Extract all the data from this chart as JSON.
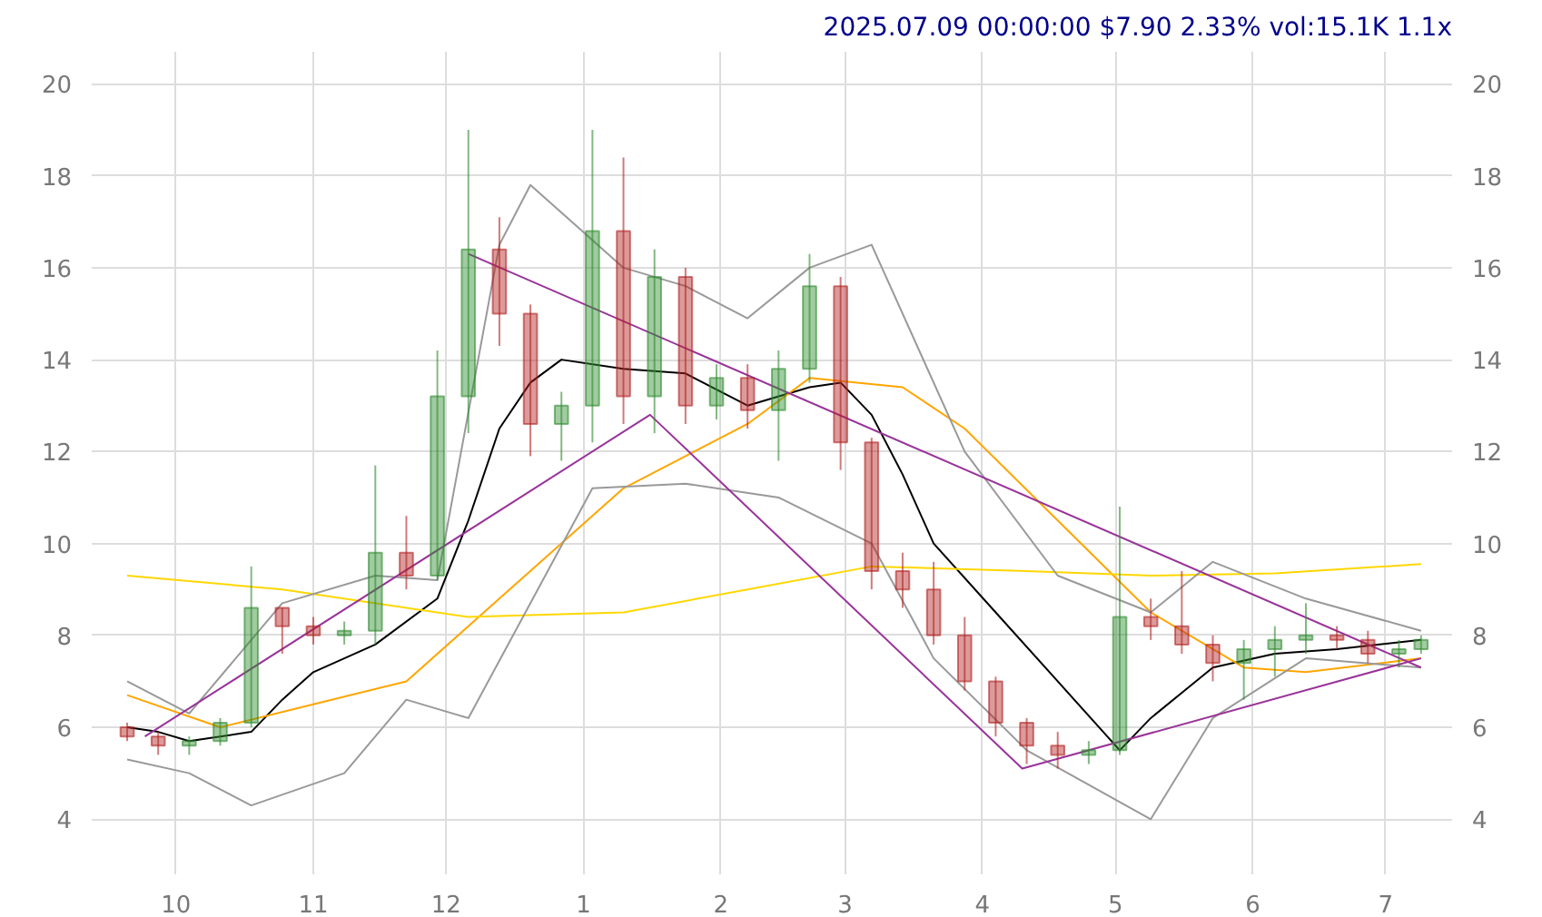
{
  "chart_data": {
    "type": "candlestick",
    "title": "2025.07.09 00:00:00 $7.90 2.33% vol:15.1K 1.1x",
    "x": [
      "2024-09-20",
      "2024-09-27",
      "2024-10-04",
      "2024-10-11",
      "2024-10-18",
      "2024-10-25",
      "2024-11-01",
      "2024-11-08",
      "2024-11-15",
      "2024-11-22",
      "2024-11-29",
      "2024-12-06",
      "2024-12-13",
      "2024-12-20",
      "2024-12-27",
      "2025-01-03",
      "2025-01-10",
      "2025-01-17",
      "2025-01-24",
      "2025-01-31",
      "2025-02-07",
      "2025-02-14",
      "2025-02-21",
      "2025-02-28",
      "2025-03-07",
      "2025-03-14",
      "2025-03-21",
      "2025-03-28",
      "2025-04-04",
      "2025-04-11",
      "2025-04-18",
      "2025-04-25",
      "2025-05-02",
      "2025-05-09",
      "2025-05-16",
      "2025-05-23",
      "2025-05-30",
      "2025-06-06",
      "2025-06-13",
      "2025-06-20",
      "2025-06-27",
      "2025-07-04",
      "2025-07-09"
    ],
    "ohlc": [
      [
        6.0,
        6.1,
        5.7,
        5.8
      ],
      [
        5.8,
        5.9,
        5.4,
        5.6
      ],
      [
        5.6,
        5.8,
        5.4,
        5.7
      ],
      [
        5.7,
        6.2,
        5.6,
        6.1
      ],
      [
        6.1,
        9.5,
        6.0,
        8.6
      ],
      [
        8.6,
        8.6,
        7.6,
        8.2
      ],
      [
        8.2,
        8.4,
        7.8,
        8.0
      ],
      [
        8.0,
        8.3,
        7.8,
        8.1
      ],
      [
        8.1,
        11.7,
        7.8,
        9.8
      ],
      [
        9.8,
        10.6,
        9.0,
        9.3
      ],
      [
        9.3,
        14.2,
        9.2,
        13.2
      ],
      [
        13.2,
        19.0,
        12.4,
        16.4
      ],
      [
        16.4,
        17.1,
        14.3,
        15.0
      ],
      [
        15.0,
        15.2,
        11.9,
        12.6
      ],
      [
        12.6,
        13.3,
        11.8,
        13.0
      ],
      [
        13.0,
        19.0,
        12.2,
        16.8
      ],
      [
        16.8,
        18.4,
        12.6,
        13.2
      ],
      [
        13.2,
        16.4,
        12.4,
        15.8
      ],
      [
        15.8,
        16.0,
        12.6,
        13.0
      ],
      [
        13.0,
        13.9,
        12.7,
        13.6
      ],
      [
        13.6,
        13.9,
        12.5,
        12.9
      ],
      [
        12.9,
        14.2,
        11.8,
        13.8
      ],
      [
        13.8,
        16.3,
        13.5,
        15.6
      ],
      [
        15.6,
        15.8,
        11.6,
        12.2
      ],
      [
        12.2,
        12.3,
        9.0,
        9.4
      ],
      [
        9.4,
        9.8,
        8.6,
        9.0
      ],
      [
        9.0,
        9.6,
        7.8,
        8.0
      ],
      [
        8.0,
        8.4,
        6.8,
        7.0
      ],
      [
        7.0,
        7.1,
        5.8,
        6.1
      ],
      [
        6.1,
        6.2,
        5.2,
        5.6
      ],
      [
        5.6,
        5.9,
        5.1,
        5.4
      ],
      [
        5.4,
        5.7,
        5.2,
        5.5
      ],
      [
        5.5,
        10.8,
        5.4,
        8.4
      ],
      [
        8.4,
        8.8,
        7.9,
        8.2
      ],
      [
        8.2,
        9.4,
        7.6,
        7.8
      ],
      [
        7.8,
        8.0,
        7.0,
        7.4
      ],
      [
        7.4,
        7.9,
        6.6,
        7.7
      ],
      [
        7.7,
        8.2,
        7.1,
        7.9
      ],
      [
        7.9,
        8.7,
        7.6,
        8.0
      ],
      [
        8.0,
        8.2,
        7.7,
        7.9
      ],
      [
        7.9,
        8.1,
        7.4,
        7.6
      ],
      [
        7.6,
        7.9,
        7.3,
        7.7
      ],
      [
        7.7,
        8.0,
        7.6,
        7.9
      ]
    ],
    "series": [
      {
        "type": "line",
        "color": "#000000",
        "x": [
          "2024-09-20",
          "2024-09-27",
          "2024-10-04",
          "2024-10-18",
          "2024-10-25",
          "2024-11-01",
          "2024-11-15",
          "2024-11-29",
          "2024-12-06",
          "2024-12-13",
          "2024-12-20",
          "2024-12-27",
          "2025-01-10",
          "2025-01-24",
          "2025-02-07",
          "2025-02-21",
          "2025-02-28",
          "2025-03-07",
          "2025-03-14",
          "2025-03-21",
          "2025-04-04",
          "2025-04-18",
          "2025-05-02",
          "2025-05-09",
          "2025-05-23",
          "2025-06-06",
          "2025-06-20",
          "2025-07-09"
        ],
        "values": [
          6.0,
          5.9,
          5.7,
          5.9,
          6.6,
          7.2,
          7.8,
          8.8,
          10.5,
          12.5,
          13.5,
          14.0,
          13.8,
          13.7,
          13.0,
          13.4,
          13.5,
          12.8,
          11.5,
          10.0,
          8.5,
          7.0,
          5.5,
          6.2,
          7.3,
          7.6,
          7.7,
          7.9
        ]
      },
      {
        "type": "line",
        "color": "#ffa500",
        "x": [
          "2024-09-20",
          "2024-10-11",
          "2024-11-01",
          "2024-11-22",
          "2024-12-13",
          "2025-01-10",
          "2025-02-07",
          "2025-02-21",
          "2025-03-14",
          "2025-03-28",
          "2025-04-18",
          "2025-05-09",
          "2025-05-30",
          "2025-06-13",
          "2025-07-09"
        ],
        "values": [
          6.7,
          6.0,
          6.5,
          7.0,
          8.8,
          11.2,
          12.6,
          13.6,
          13.4,
          12.5,
          10.5,
          8.5,
          7.3,
          7.2,
          7.5
        ]
      },
      {
        "type": "line",
        "color": "#ffd700",
        "x": [
          "2024-09-20",
          "2024-10-25",
          "2024-12-06",
          "2025-01-10",
          "2025-02-07",
          "2025-03-07",
          "2025-04-11",
          "2025-05-09",
          "2025-06-06",
          "2025-07-09"
        ],
        "values": [
          9.3,
          9.0,
          8.4,
          8.5,
          9.0,
          9.5,
          9.4,
          9.3,
          9.35,
          9.55
        ]
      },
      {
        "type": "line",
        "color": "#999999",
        "x": [
          "2024-09-20",
          "2024-10-04",
          "2024-10-25",
          "2024-11-15",
          "2024-11-29",
          "2024-12-13",
          "2024-12-20",
          "2025-01-10",
          "2025-01-24",
          "2025-02-07",
          "2025-02-21",
          "2025-03-07",
          "2025-03-28",
          "2025-04-18",
          "2025-05-09",
          "2025-05-23",
          "2025-06-13",
          "2025-07-09"
        ],
        "values": [
          7.0,
          6.3,
          8.7,
          9.3,
          9.2,
          16.5,
          17.8,
          16.0,
          15.6,
          14.9,
          16.0,
          16.5,
          12.0,
          9.3,
          8.5,
          9.6,
          8.8,
          8.1
        ]
      },
      {
        "type": "line",
        "color": "#999999",
        "x": [
          "2024-09-20",
          "2024-10-04",
          "2024-10-18",
          "2024-11-08",
          "2024-11-22",
          "2024-12-06",
          "2025-01-03",
          "2025-01-24",
          "2025-02-14",
          "2025-03-07",
          "2025-03-21",
          "2025-04-11",
          "2025-05-09",
          "2025-05-23",
          "2025-06-13",
          "2025-07-09"
        ],
        "values": [
          5.3,
          5.0,
          4.3,
          5.0,
          6.6,
          6.2,
          11.2,
          11.3,
          11.0,
          10.0,
          7.5,
          5.5,
          4.0,
          6.2,
          7.5,
          7.3
        ]
      },
      {
        "type": "line",
        "color": "#993399",
        "x": [
          "2024-09-24",
          "2025-01-16",
          "2025-04-10",
          "2025-07-09"
        ],
        "values": [
          5.8,
          12.8,
          5.1,
          7.5
        ]
      },
      {
        "type": "line",
        "color": "#993399",
        "x": [
          "2024-12-06",
          "2025-07-09"
        ],
        "values": [
          16.3,
          7.3
        ]
      }
    ],
    "xlim": [
      "2024-09-12",
      "2025-07-16"
    ],
    "xticks": [
      {
        "value": "2024-10-01",
        "label": "10"
      },
      {
        "value": "2024-11-01",
        "label": "11"
      },
      {
        "value": "2024-12-01",
        "label": "12"
      },
      {
        "value": "2025-01-01",
        "label": "1"
      },
      {
        "value": "2025-02-01",
        "label": "2"
      },
      {
        "value": "2025-03-01",
        "label": "3"
      },
      {
        "value": "2025-04-01",
        "label": "4"
      },
      {
        "value": "2025-05-01",
        "label": "5"
      },
      {
        "value": "2025-06-01",
        "label": "6"
      },
      {
        "value": "2025-07-01",
        "label": "7"
      }
    ],
    "ylim": [
      2.8,
      20.7
    ],
    "yticks": [
      4,
      6,
      8,
      10,
      12,
      14,
      16,
      18,
      20
    ],
    "y2lim": [
      2.8,
      20.7
    ],
    "y2ticks": [
      4,
      6,
      8,
      10,
      12,
      14,
      16,
      18,
      20
    ],
    "grid": true
  }
}
